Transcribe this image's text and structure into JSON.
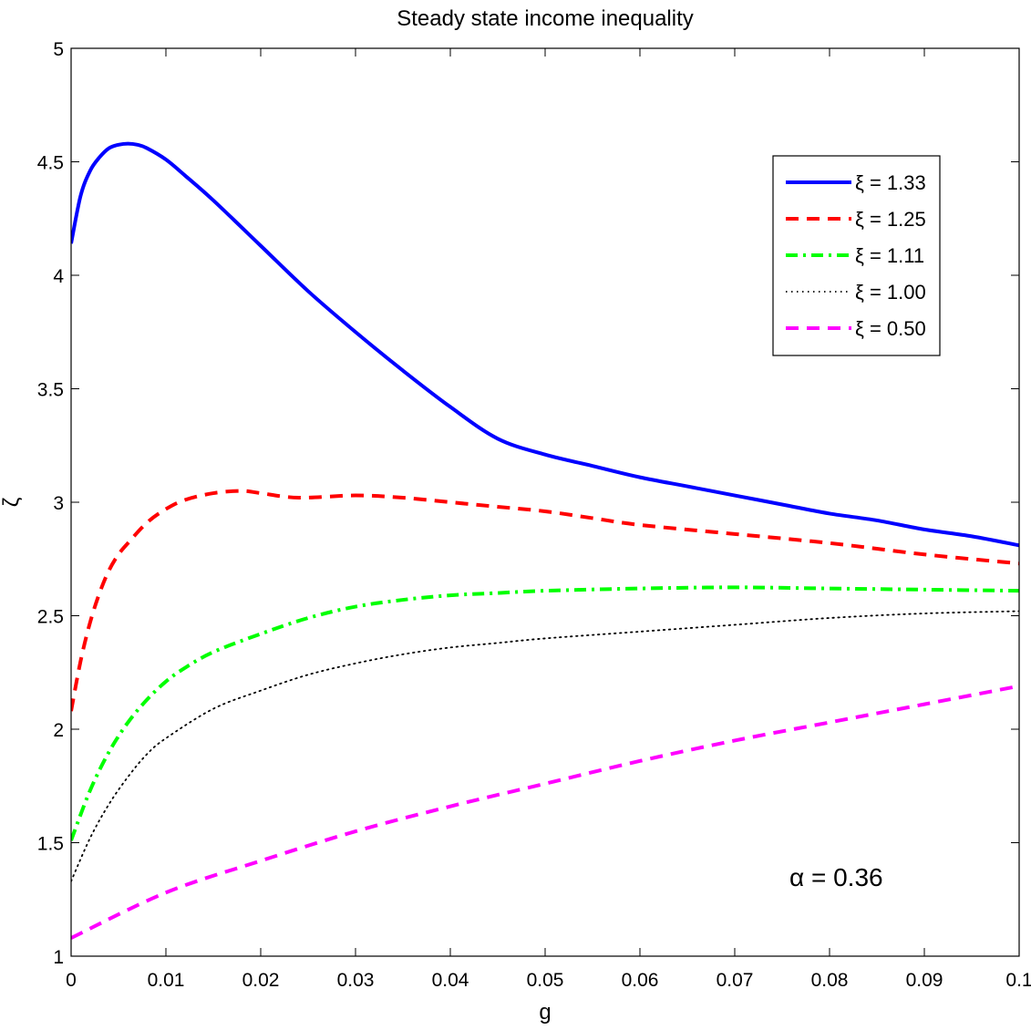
{
  "chart_data": {
    "type": "line",
    "title": "Steady state income inequality",
    "xlabel": "g",
    "ylabel": "ζ",
    "xlim": [
      0,
      0.1
    ],
    "ylim": [
      1,
      5
    ],
    "xticks": [
      0,
      0.01,
      0.02,
      0.03,
      0.04,
      0.05,
      0.06,
      0.07,
      0.08,
      0.09,
      0.1
    ],
    "xtick_labels": [
      "0",
      "0.01",
      "0.02",
      "0.03",
      "0.04",
      "0.05",
      "0.06",
      "0.07",
      "0.08",
      "0.09",
      "0.1"
    ],
    "yticks": [
      1,
      1.5,
      2,
      2.5,
      3,
      3.5,
      4,
      4.5,
      5
    ],
    "ytick_labels": [
      "1",
      "1.5",
      "2",
      "2.5",
      "3",
      "3.5",
      "4",
      "4.5",
      "5"
    ],
    "grid": false,
    "legend_position": "top-right",
    "annotation": "α = 0.36",
    "series": [
      {
        "name": "ξ = 1.33",
        "color": "#0000ff",
        "style": "solid",
        "x": [
          0,
          0.001,
          0.002,
          0.003,
          0.004,
          0.005,
          0.006,
          0.007,
          0.008,
          0.01,
          0.012,
          0.015,
          0.02,
          0.025,
          0.03,
          0.035,
          0.04,
          0.045,
          0.05,
          0.055,
          0.06,
          0.065,
          0.07,
          0.075,
          0.08,
          0.085,
          0.09,
          0.095,
          0.1
        ],
        "y": [
          4.14,
          4.35,
          4.46,
          4.52,
          4.56,
          4.575,
          4.58,
          4.575,
          4.56,
          4.51,
          4.44,
          4.33,
          4.13,
          3.93,
          3.75,
          3.58,
          3.42,
          3.28,
          3.21,
          3.16,
          3.11,
          3.07,
          3.03,
          2.99,
          2.95,
          2.92,
          2.88,
          2.85,
          2.81
        ]
      },
      {
        "name": "ξ = 1.25",
        "color": "#ff0000",
        "style": "dashed",
        "x": [
          0,
          0.001,
          0.002,
          0.003,
          0.004,
          0.005,
          0.006,
          0.008,
          0.01,
          0.012,
          0.015,
          0.018,
          0.02,
          0.024,
          0.03,
          0.035,
          0.04,
          0.045,
          0.05,
          0.055,
          0.06,
          0.07,
          0.08,
          0.09,
          0.1
        ],
        "y": [
          2.08,
          2.3,
          2.47,
          2.6,
          2.7,
          2.77,
          2.82,
          2.91,
          2.97,
          3.01,
          3.04,
          3.05,
          3.04,
          3.02,
          3.03,
          3.02,
          3.0,
          2.98,
          2.96,
          2.93,
          2.9,
          2.86,
          2.82,
          2.77,
          2.73
        ]
      },
      {
        "name": "ξ = 1.11",
        "color": "#00ff00",
        "style": "dashdot",
        "x": [
          0,
          0.002,
          0.004,
          0.006,
          0.008,
          0.01,
          0.012,
          0.015,
          0.02,
          0.025,
          0.03,
          0.035,
          0.04,
          0.045,
          0.05,
          0.06,
          0.07,
          0.08,
          0.09,
          0.1
        ],
        "y": [
          1.51,
          1.73,
          1.9,
          2.03,
          2.13,
          2.21,
          2.27,
          2.34,
          2.42,
          2.49,
          2.54,
          2.57,
          2.59,
          2.6,
          2.61,
          2.62,
          2.625,
          2.62,
          2.615,
          2.61
        ]
      },
      {
        "name": "ξ = 1.00",
        "color": "#000000",
        "style": "dotted",
        "x": [
          0,
          0.002,
          0.004,
          0.006,
          0.008,
          0.01,
          0.015,
          0.02,
          0.025,
          0.03,
          0.035,
          0.04,
          0.045,
          0.05,
          0.06,
          0.07,
          0.08,
          0.09,
          0.1
        ],
        "y": [
          1.33,
          1.52,
          1.67,
          1.79,
          1.89,
          1.96,
          2.09,
          2.17,
          2.24,
          2.29,
          2.33,
          2.36,
          2.38,
          2.4,
          2.43,
          2.46,
          2.49,
          2.51,
          2.52
        ]
      },
      {
        "name": "ξ = 0.50",
        "color": "#ff00ff",
        "style": "dashed",
        "x": [
          0,
          0.01,
          0.02,
          0.03,
          0.04,
          0.05,
          0.06,
          0.07,
          0.08,
          0.09,
          0.1
        ],
        "y": [
          1.08,
          1.28,
          1.42,
          1.55,
          1.66,
          1.76,
          1.86,
          1.95,
          2.03,
          2.11,
          2.19
        ]
      }
    ]
  }
}
